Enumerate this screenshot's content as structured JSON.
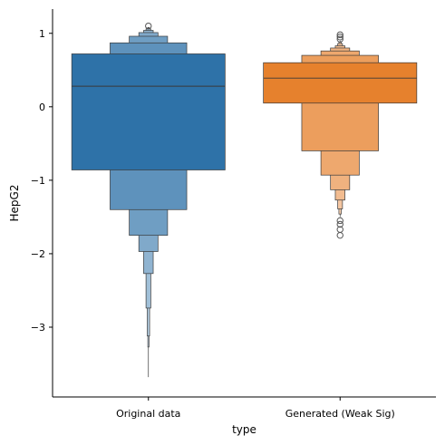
{
  "chart_data": {
    "type": "boxen",
    "xlabel": "type",
    "ylabel": "HepG2",
    "ylim": [
      -3.95,
      1.33
    ],
    "yticks": [
      1,
      0,
      -1,
      -2,
      -3
    ],
    "ytick_labels": [
      "1",
      "0",
      "−2",
      "−3"
    ],
    "ytick_labels_full": [
      "1",
      "0",
      "−1",
      "−2",
      "−3"
    ],
    "categories": [
      "Original data",
      "Generated (Weak Sig)"
    ],
    "series": [
      {
        "category": "Original data",
        "color": "#2e72a8",
        "median": 0.28,
        "boxes": [
          {
            "low": -0.86,
            "high": 0.72
          },
          {
            "low": -1.4,
            "high": 0.87
          },
          {
            "low": -1.75,
            "high": 0.96
          },
          {
            "low": -1.97,
            "high": 1.01
          },
          {
            "low": -2.27,
            "high": 1.04
          },
          {
            "low": -2.74,
            "high": 1.06
          },
          {
            "low": -3.12,
            "high": 1.07
          },
          {
            "low": -3.27,
            "high": 1.08
          }
        ],
        "whisker": [
          -3.68,
          1.08
        ],
        "outliers": [
          1.1
        ]
      },
      {
        "category": "Generated (Weak Sig)",
        "color": "#e6812d",
        "median": 0.39,
        "boxes": [
          {
            "low": 0.05,
            "high": 0.6
          },
          {
            "low": -0.6,
            "high": 0.7
          },
          {
            "low": -0.93,
            "high": 0.76
          },
          {
            "low": -1.13,
            "high": 0.8
          },
          {
            "low": -1.27,
            "high": 0.83
          },
          {
            "low": -1.39,
            "high": 0.86
          },
          {
            "low": -1.46,
            "high": 0.88
          }
        ],
        "whisker": [
          -1.5,
          0.9
        ],
        "outliers": [
          0.92,
          0.95,
          0.98,
          -1.55,
          -1.6,
          -1.67,
          -1.75
        ]
      }
    ]
  }
}
